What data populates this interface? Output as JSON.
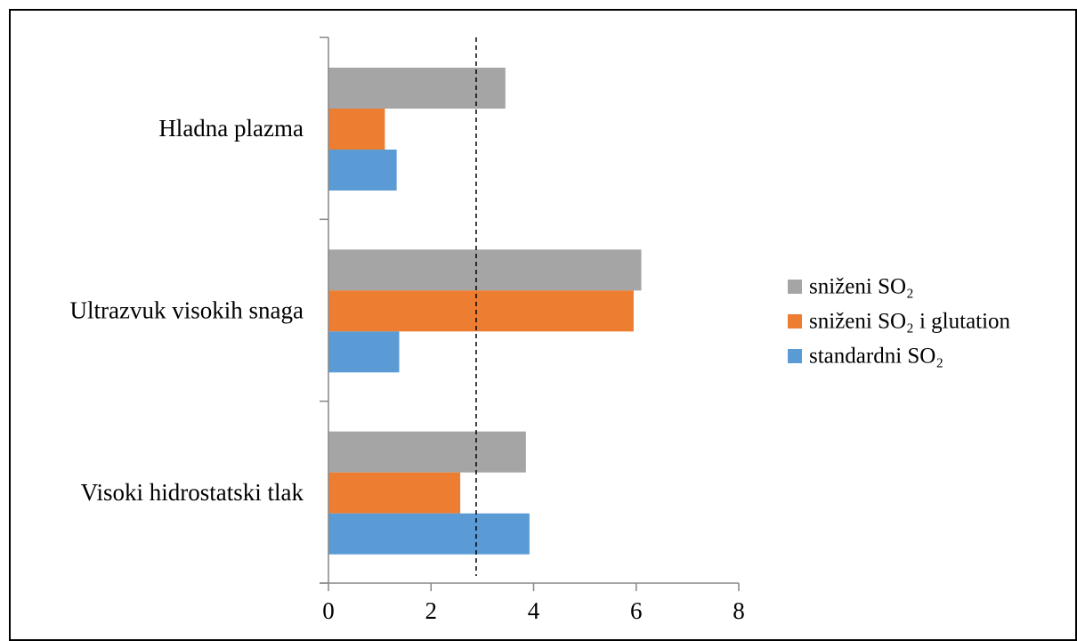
{
  "chart_data": {
    "type": "bar",
    "orientation": "horizontal",
    "categories": [
      "Hladna plazma",
      "Ultrazvuk visokih snaga",
      "Visoki hidrostatski tlak"
    ],
    "series": [
      {
        "name": "sniženi SO₂",
        "color": "#a5a5a5",
        "values": [
          3.45,
          6.1,
          3.85
        ]
      },
      {
        "name": "sniženi SO₂ i glutation",
        "color": "#ed7d31",
        "values": [
          1.1,
          5.95,
          2.57
        ]
      },
      {
        "name": "standardni SO₂",
        "color": "#5b9bd5",
        "values": [
          1.33,
          1.38,
          3.92
        ]
      }
    ],
    "reference_line": {
      "x": 2.88,
      "style": "dashed"
    },
    "xlim": [
      0,
      8
    ],
    "xticks": [
      "0",
      "2",
      "4",
      "6",
      "8"
    ],
    "grid": false,
    "legend_position": "right",
    "title": "",
    "xlabel": "",
    "ylabel": ""
  }
}
